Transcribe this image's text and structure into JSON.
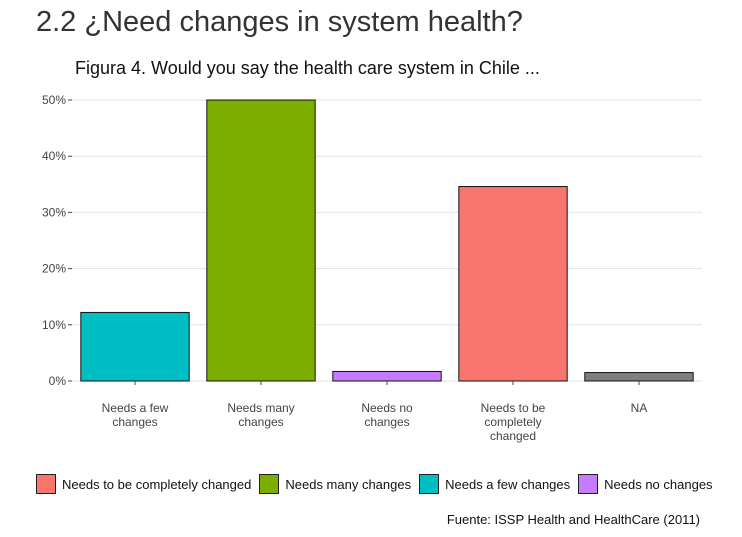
{
  "page": {
    "title": "2.2 ¿Need changes in system health?"
  },
  "chart_data": {
    "type": "bar",
    "title": "Figura 4. Would you say the health care system in Chile ...",
    "xlabel": "",
    "ylabel": "",
    "ylim": [
      0,
      0.5
    ],
    "yticks": [
      0,
      0.1,
      0.2,
      0.3,
      0.4,
      0.5
    ],
    "ytick_labels": [
      "0%",
      "10%",
      "20%",
      "30%",
      "40%",
      "50%"
    ],
    "grid": true,
    "legend_position": "bottom",
    "categories": [
      {
        "lines": [
          "Needs a few",
          "changes"
        ],
        "value": 0.122,
        "color": "#00BFC4"
      },
      {
        "lines": [
          "Needs many",
          "changes"
        ],
        "value": 0.5,
        "color": "#7CAE00"
      },
      {
        "lines": [
          "Needs no",
          "changes"
        ],
        "value": 0.017,
        "color": "#C77CFF"
      },
      {
        "lines": [
          "Needs to be",
          "completely",
          "changed"
        ],
        "value": 0.346,
        "color": "#F8766D"
      },
      {
        "lines": [
          "NA"
        ],
        "value": 0.015,
        "color": "#7F7F7F"
      }
    ],
    "legend": [
      {
        "label": "Needs to be completely changed",
        "color": "#F8766D"
      },
      {
        "label": "Needs many changes",
        "color": "#7CAE00"
      },
      {
        "label": "Needs a few changes",
        "color": "#00BFC4"
      },
      {
        "label": "Needs no changes",
        "color": "#C77CFF"
      }
    ]
  },
  "source": "Fuente: ISSP Health and HealthCare (2011)"
}
